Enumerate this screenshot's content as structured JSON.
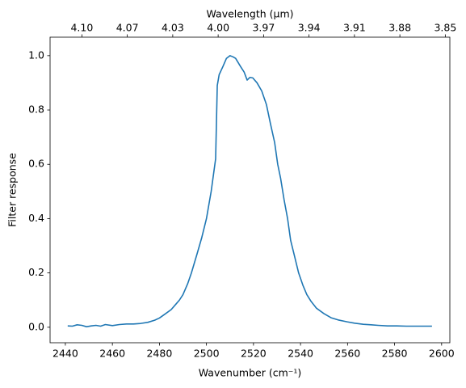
{
  "chart_data": {
    "type": "line",
    "xlabel": "Wavenumber (cm⁻¹)",
    "x2label": "Wavelength (μm)",
    "ylabel": "Filter response",
    "color": "#1f77b4",
    "x": [
      2441,
      2443,
      2445,
      2447,
      2449,
      2451,
      2453,
      2455,
      2457,
      2460,
      2463,
      2466,
      2469,
      2472,
      2475,
      2478,
      2480,
      2482.6,
      2485,
      2487,
      2488.5,
      2490,
      2492,
      2493.6,
      2496,
      2498,
      2500,
      2502,
      2503.9,
      2504.6,
      2505.4,
      2507,
      2508.5,
      2510,
      2511.2,
      2512.4,
      2514.5,
      2516,
      2517.3,
      2518.5,
      2519.7,
      2521.5,
      2523.5,
      2525.5,
      2527.2,
      2529,
      2530.3,
      2531.5,
      2533,
      2534.5,
      2535.8,
      2537.5,
      2539.2,
      2541,
      2542.7,
      2544.5,
      2546.8,
      2550,
      2553,
      2556,
      2559.8,
      2563,
      2566.7,
      2570,
      2573,
      2577,
      2581,
      2585,
      2589,
      2593,
      2595.9
    ],
    "values": [
      0.005,
      0.004,
      0.009,
      0.007,
      0.002,
      0.005,
      0.007,
      0.004,
      0.01,
      0.006,
      0.01,
      0.012,
      0.012,
      0.014,
      0.018,
      0.026,
      0.034,
      0.05,
      0.065,
      0.085,
      0.1,
      0.12,
      0.16,
      0.2,
      0.27,
      0.33,
      0.4,
      0.5,
      0.62,
      0.89,
      0.93,
      0.96,
      0.99,
      1.0,
      0.996,
      0.99,
      0.96,
      0.94,
      0.91,
      0.92,
      0.918,
      0.9,
      0.87,
      0.82,
      0.75,
      0.68,
      0.6,
      0.55,
      0.47,
      0.4,
      0.32,
      0.26,
      0.2,
      0.155,
      0.12,
      0.095,
      0.07,
      0.05,
      0.035,
      0.027,
      0.02,
      0.015,
      0.011,
      0.009,
      0.007,
      0.005,
      0.005,
      0.004,
      0.004,
      0.004,
      0.004
    ],
    "xlim": [
      2433.5,
      2603.5
    ],
    "xticks": [
      2440,
      2460,
      2480,
      2500,
      2520,
      2540,
      2560,
      2580,
      2600
    ],
    "x2lim": [
      4.116,
      3.852
    ],
    "x2ticks": [
      {
        "value": 4.095,
        "label": "4.10"
      },
      {
        "value": 4.065,
        "label": "4.07"
      },
      {
        "value": 4.035,
        "label": "4.03"
      },
      {
        "value": 4.005,
        "label": "4.00"
      },
      {
        "value": 3.975,
        "label": "3.97"
      },
      {
        "value": 3.945,
        "label": "3.94"
      },
      {
        "value": 3.915,
        "label": "3.91"
      },
      {
        "value": 3.885,
        "label": "3.88"
      },
      {
        "value": 3.855,
        "label": "3.85"
      }
    ],
    "ylim": [
      -0.057,
      1.068
    ],
    "yticks": [
      {
        "value": 0,
        "label": "0.0"
      },
      {
        "value": 0.2,
        "label": "0.2"
      },
      {
        "value": 0.4,
        "label": "0.4"
      },
      {
        "value": 0.6,
        "label": "0.6"
      },
      {
        "value": 0.8,
        "label": "0.8"
      },
      {
        "value": 1.0,
        "label": "1.0"
      }
    ]
  }
}
